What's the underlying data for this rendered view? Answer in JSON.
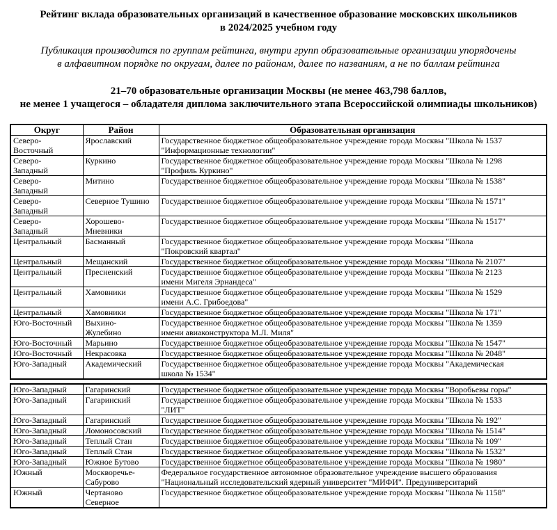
{
  "header": {
    "title": "Рейтинг вклада образовательных организаций в качественное образование московских школьников\nв 2024/2025 учебном году",
    "note": "Публикация производится по группам рейтинга, внутри групп образовательные организации упорядочены\nв алфавитном порядке по округам, далее по районам, далее по названиям, а не по баллам рейтинга",
    "group_heading": "21–70 образовательные организации Москвы (не менее 463,798 баллов,\nне менее 1 учащегося – обладателя диплома заключительного этапа Всероссийской олимпиады школьников)"
  },
  "table": {
    "headers": [
      "Округ",
      "Район",
      "Образовательная организация"
    ],
    "sections": [
      {
        "rows": [
          [
            "Северо-\nВосточный",
            "Ярославский",
            "Государственное бюджетное общеобразовательное учреждение города Москвы \"Школа № 1537\n\"Информационные технологии\""
          ],
          [
            "Северо-\nЗападный",
            "Куркино",
            "Государственное бюджетное общеобразовательное учреждение города Москвы \"Школа № 1298\n\"Профиль Куркино\""
          ],
          [
            "Северо-\nЗападный",
            "Митино",
            "Государственное бюджетное общеобразовательное учреждение города Москвы \"Школа № 1538\""
          ],
          [
            "Северо-\nЗападный",
            "Северное Тушино",
            "Государственное бюджетное общеобразовательное учреждение города Москвы \"Школа № 1571\""
          ],
          [
            "Северо-\nЗападный",
            "Хорошево-\nМневники",
            "Государственное бюджетное общеобразовательное учреждение города Москвы \"Школа № 1517\""
          ],
          [
            "Центральный",
            "Басманный",
            "Государственное бюджетное общеобразовательное учреждение города Москвы \"Школа\n\"Покровский квартал\""
          ],
          [
            "Центральный",
            "Мещанский",
            "Государственное бюджетное общеобразовательное учреждение города Москвы \"Школа № 2107\""
          ],
          [
            "Центральный",
            "Пресненский",
            "Государственное бюджетное общеобразовательное учреждение города Москвы \"Школа № 2123\nимени Мигеля Эрнандеса\""
          ],
          [
            "Центральный",
            "Хамовники",
            "Государственное бюджетное общеобразовательное учреждение города Москвы \"Школа № 1529\nимени А.С. Грибоедова\""
          ],
          [
            "Центральный",
            "Хамовники",
            "Государственное бюджетное общеобразовательное учреждение города Москвы \"Школа № 171\""
          ],
          [
            "Юго-Восточный",
            "Выхино-\nЖулебино",
            "Государственное бюджетное общеобразовательное учреждение города Москвы \"Школа № 1359\nимени авиаконструктора М.Л. Миля\""
          ],
          [
            "Юго-Восточный",
            "Марьино",
            "Государственное бюджетное общеобразовательное учреждение города Москвы \"Школа № 1547\""
          ],
          [
            "Юго-Восточный",
            "Некрасовка",
            "Государственное бюджетное общеобразовательное учреждение города Москвы \"Школа № 2048\""
          ],
          [
            "Юго-Западный",
            "Академический",
            "Государственное бюджетное общеобразовательное учреждение города Москвы \"Академическая\nшкола № 1534\""
          ]
        ]
      },
      {
        "rows": [
          [
            "Юго-Западный",
            "Гагаринский",
            "Государственное бюджетное общеобразовательное учреждение города Москвы \"Воробьевы горы\""
          ],
          [
            "Юго-Западный",
            "Гагаринский",
            "Государственное бюджетное общеобразовательное учреждение города Москвы \"Школа № 1533\n\"ЛИТ\""
          ],
          [
            "Юго-Западный",
            "Гагаринский",
            "Государственное бюджетное общеобразовательное учреждение города Москвы \"Школа № 192\""
          ],
          [
            "Юго-Западный",
            "Ломоносовский",
            "Государственное бюджетное общеобразовательное учреждение города Москвы \"Школа № 1514\""
          ],
          [
            "Юго-Западный",
            "Теплый Стан",
            "Государственное бюджетное общеобразовательное учреждение города Москвы \"Школа № 109\""
          ],
          [
            "Юго-Западный",
            "Теплый Стан",
            "Государственное бюджетное общеобразовательное учреждение города Москвы \"Школа № 1532\""
          ],
          [
            "Юго-Западный",
            "Южное Бутово",
            "Государственное бюджетное общеобразовательное учреждение города Москвы \"Школа № 1980\""
          ],
          [
            "Южный",
            "Москворечье-\nСабурово",
            "Федеральное государственное автономное образовательное учреждение высшего образования\n\"Национальный исследовательский ядерный университет \"МИФИ\". Предуниверситарий"
          ],
          [
            "Южный",
            "Чертаново\nСеверное",
            "Государственное бюджетное общеобразовательное учреждение города Москвы \"Школа № 1158\""
          ]
        ]
      }
    ]
  },
  "colors": {
    "text": "#000000",
    "border": "#000000",
    "background": "#ffffff"
  }
}
